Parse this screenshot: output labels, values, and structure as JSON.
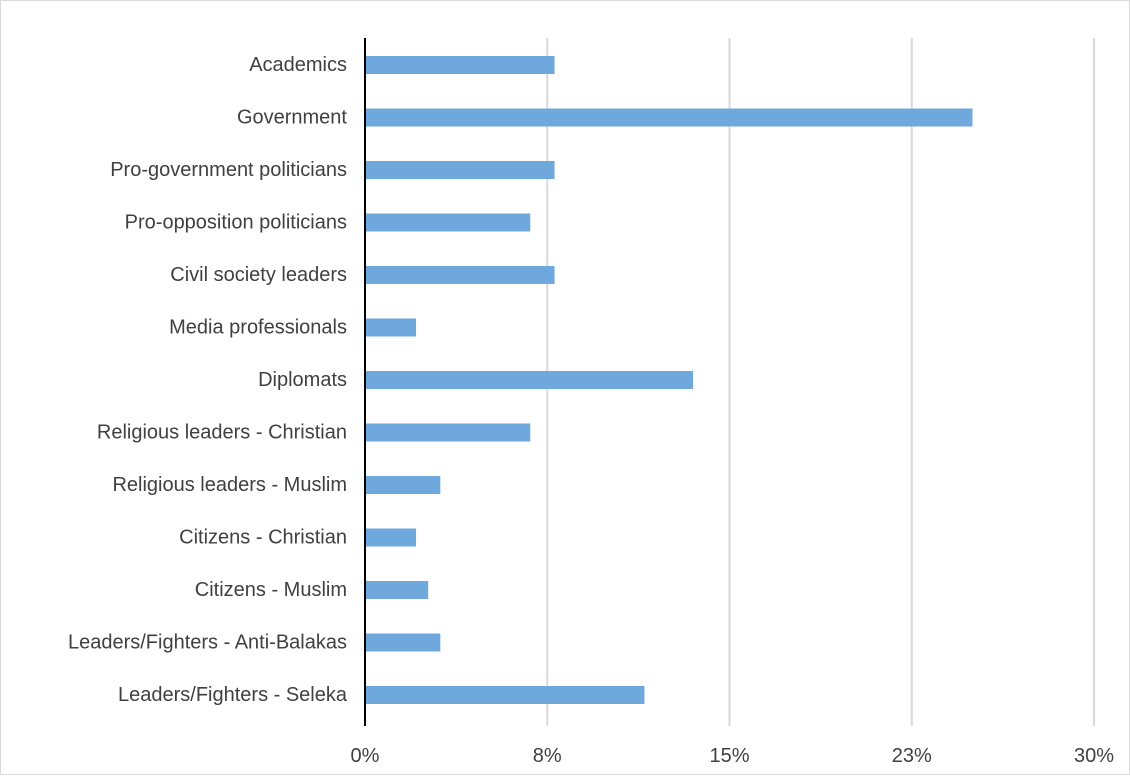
{
  "chart_data": {
    "type": "bar",
    "orientation": "horizontal",
    "categories": [
      "Academics",
      "Government",
      "Pro-government politicians",
      "Pro-opposition politicians",
      "Civil society leaders",
      "Media professionals",
      "Diplomats",
      "Religious leaders - Christian",
      "Religious leaders - Muslim",
      "Citizens - Christian",
      "Citizens - Muslim",
      "Leaders/Fighters - Anti-Balakas",
      "Leaders/Fighters - Seleka"
    ],
    "values": [
      7.8,
      25.0,
      7.8,
      6.8,
      7.8,
      2.1,
      13.5,
      6.8,
      3.1,
      2.1,
      2.6,
      3.1,
      11.5
    ],
    "xlim": [
      0,
      30
    ],
    "xticks": [
      0,
      7.5,
      15,
      22.5,
      30
    ],
    "xtick_labels": [
      "0%",
      "8%",
      "15%",
      "23%",
      "30%"
    ],
    "title": "",
    "xlabel": "",
    "ylabel": "",
    "grid": "vertical",
    "legend": "none",
    "bar_color": "#6FA8DC",
    "gridline_color": "#d9d9d9",
    "axis_color": "#000000",
    "label_color": "#404040"
  }
}
